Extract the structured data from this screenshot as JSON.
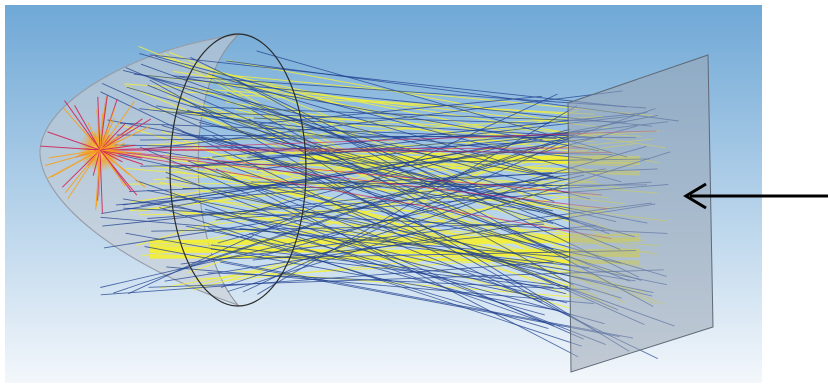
{
  "scene": {
    "background_top_color": "#6fa8d6",
    "background_bottom_color": "#f3f7fb",
    "reflector_color": "#c9ccd2",
    "screen_color": "#9aa6b4",
    "ray_colors": {
      "primary": "#1f3f8f",
      "secondary": "#f2ee3a",
      "source": "#d2245a",
      "source_glow": "#f6a11c"
    },
    "arrow_color": "#000000",
    "arrow_icon": "left-arrow-icon"
  }
}
